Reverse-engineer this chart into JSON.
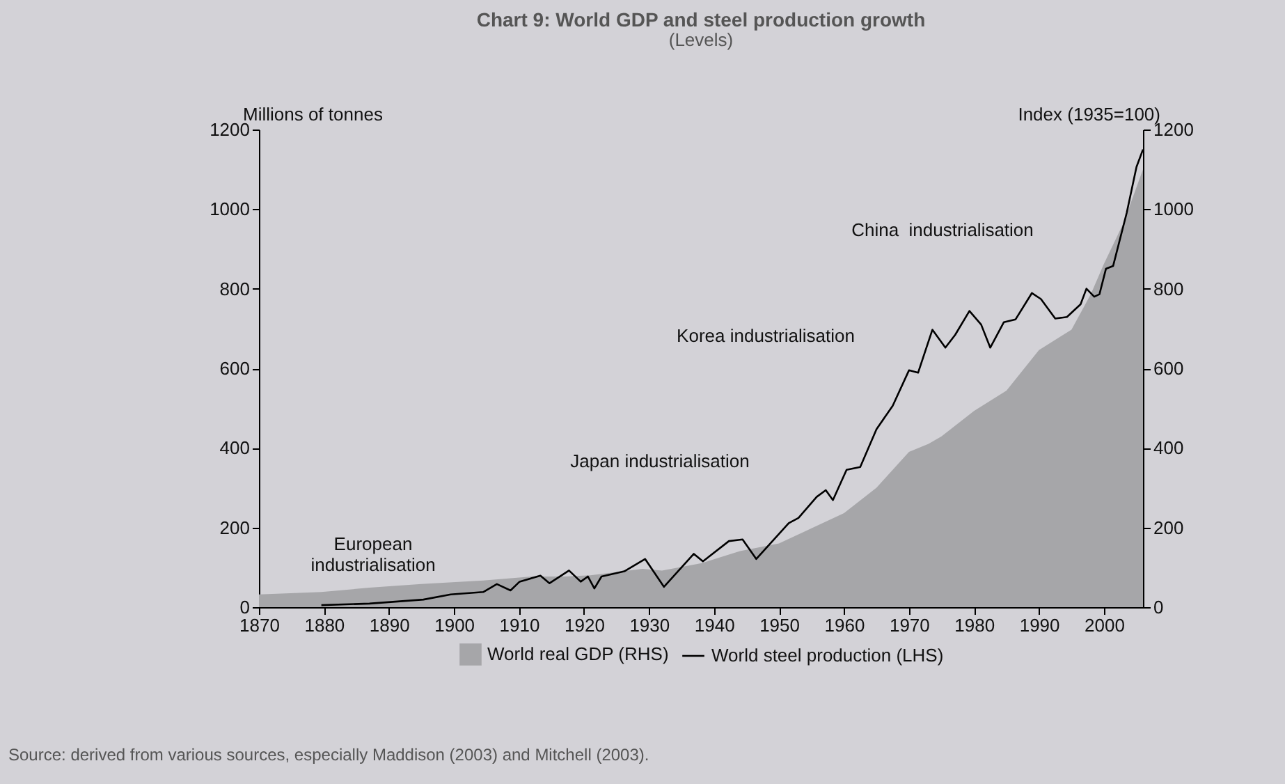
{
  "chart_data": {
    "type": "line",
    "title": "Chart 9: World GDP and steel production growth",
    "subtitle": "(Levels)",
    "ylabel": "Millions of tonnes",
    "y2label": "Index (1935=100)",
    "xlim": [
      1870,
      2006
    ],
    "xticks": [
      1870,
      1880,
      1890,
      1900,
      1910,
      1920,
      1930,
      1940,
      1950,
      1960,
      1970,
      1980,
      1990,
      2000
    ],
    "ylim": [
      0,
      1200
    ],
    "yticks": [
      0,
      200,
      400,
      600,
      800,
      1000,
      1200
    ],
    "y2lim": [
      0,
      1200
    ],
    "y2ticks": [
      0,
      200,
      400,
      600,
      800,
      1000,
      1200
    ],
    "legend": "bottom",
    "grid": false,
    "series": [
      {
        "name": "World real GDP (RHS)",
        "type": "area",
        "axis": "y2",
        "color": "#a6a6a9",
        "x": [
          1870,
          1879.6,
          1887,
          1895,
          1904.5,
          1912,
          1917,
          1921,
          1929,
          1932,
          1938,
          1944,
          1950,
          1955,
          1960,
          1965,
          1970,
          1973,
          1975,
          1980,
          1985,
          1990,
          1995,
          1998,
          2000,
          2003,
          2006
        ],
        "values": [
          32,
          38,
          49,
          58,
          67,
          77,
          77,
          80,
          96,
          92,
          110,
          141,
          160,
          198,
          236,
          300,
          390,
          410,
          429,
          493,
          544,
          646,
          697,
          787,
          863,
          965,
          1100
        ]
      },
      {
        "name": "World steel production (LHS)",
        "type": "line",
        "color": "#000000",
        "x": [
          1879.6,
          1887,
          1895.3,
          1899.5,
          1904.5,
          1906.6,
          1908.7,
          1910.1,
          1913.3,
          1914.7,
          1917.7,
          1919.5,
          1920.6,
          1921.6,
          1922.7,
          1926.2,
          1929.4,
          1932.3,
          1936.9,
          1938.3,
          1942.3,
          1944.4,
          1946.5,
          1951.5,
          1953,
          1955.8,
          1957.2,
          1958.3,
          1960.4,
          1962.5,
          1965,
          1967.5,
          1970,
          1971.4,
          1973.6,
          1975.6,
          1977.1,
          1979.3,
          1981.1,
          1982.5,
          1984.6,
          1986.4,
          1988.9,
          1990.3,
          1992.5,
          1994.3,
          1996.4,
          1997.3,
          1998.5,
          1999.3,
          2000.3,
          2001.4,
          2003.5,
          2005,
          2006
        ],
        "values": [
          5,
          9,
          19,
          32,
          38,
          58,
          42,
          64,
          79,
          60,
          92,
          64,
          77,
          47,
          77,
          90,
          121,
          51,
          134,
          115,
          166,
          170,
          121,
          211,
          224,
          277,
          294,
          269,
          345,
          352,
          447,
          506,
          595,
          589,
          697,
          652,
          684,
          744,
          710,
          652,
          716,
          723,
          789,
          774,
          725,
          729,
          761,
          800,
          780,
          786,
          850,
          857,
          991,
          1106,
          1150
        ]
      }
    ],
    "annotations": [
      "European\nindustrialisation",
      "Japan industrialisation",
      "Korea industrialisation",
      "China  industrialisation",
      "Source: derived from various sources, especially Maddison (2003) and Mitchell (2003)."
    ]
  }
}
